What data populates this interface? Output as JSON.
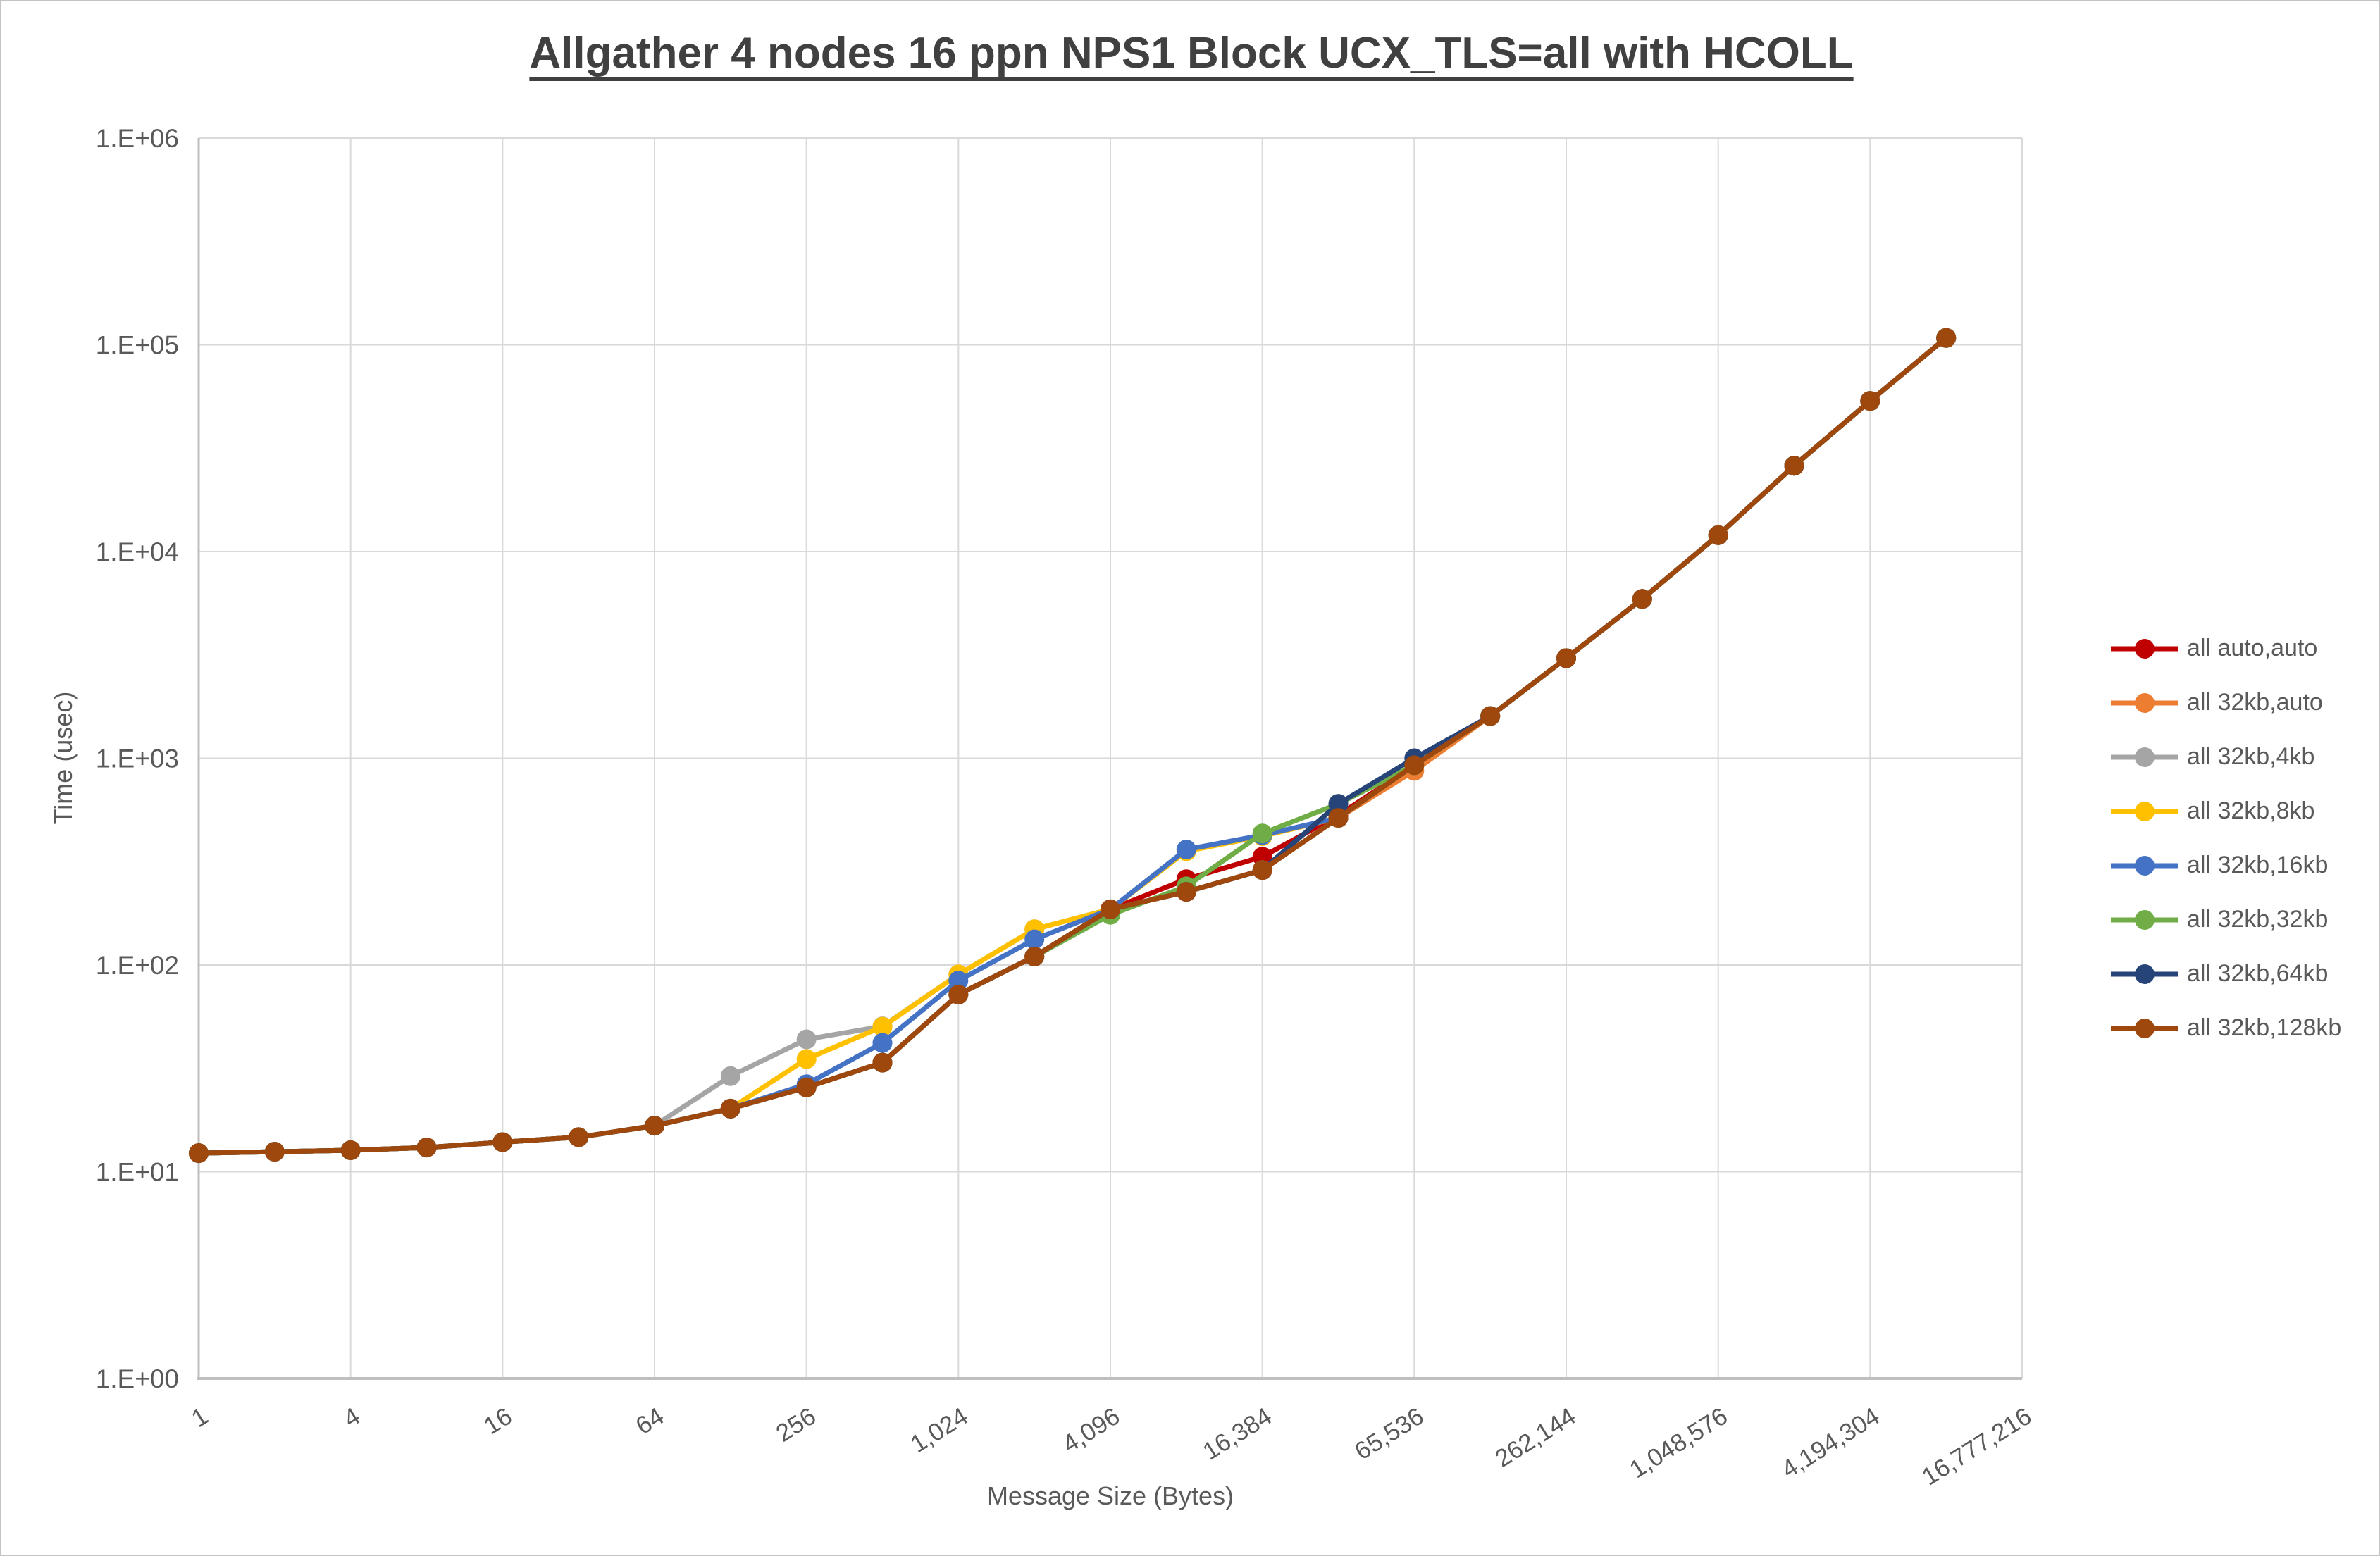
{
  "page": {
    "background": "#ffffff",
    "frame_color": "#c3c3c3"
  },
  "style": {
    "title_color": "#404040",
    "text_color": "#595959",
    "gridline_color": "#d9d9d9",
    "axis_line_color": "#bfbfbf"
  },
  "chart_data": {
    "type": "line",
    "title": "Allgather 4 nodes 16 ppn NPS1 Block UCX_TLS=all with HCOLL",
    "xlabel": "Message Size (Bytes)",
    "ylabel": "Time (usec)",
    "x_scale": "log2-categories",
    "y_scale": "log10",
    "ylim": [
      1,
      1000000
    ],
    "grid": true,
    "legend_position": "right",
    "y_tick_labels": [
      "1.E+00",
      "1.E+01",
      "1.E+02",
      "1.E+03",
      "1.E+04",
      "1.E+05",
      "1.E+06"
    ],
    "x_tick_labels": [
      "1",
      "4",
      "16",
      "64",
      "256",
      "1,024",
      "4,096",
      "16,384",
      "65,536",
      "262,144",
      "1,048,576",
      "4,194,304",
      "16,777,216"
    ],
    "x": [
      1,
      2,
      4,
      8,
      16,
      32,
      64,
      128,
      256,
      512,
      1024,
      2048,
      4096,
      8192,
      16384,
      32768,
      65536,
      131072,
      262144,
      524288,
      1048576,
      2097152,
      4194304,
      8388608
    ],
    "series": [
      {
        "name": "all auto,auto",
        "color": "#C00000",
        "values": [
          12.3,
          12.5,
          12.7,
          13.1,
          13.9,
          14.7,
          16.7,
          20.2,
          25.6,
          33.7,
          72,
          110,
          186,
          260,
          334,
          530,
          925,
          1600,
          3050,
          5900,
          12000,
          26000,
          53500,
          108000
        ]
      },
      {
        "name": "all 32kb,auto",
        "color": "#ED7D31",
        "values": [
          12.3,
          12.5,
          12.7,
          13.1,
          13.9,
          14.7,
          16.7,
          20.2,
          25.6,
          33.7,
          72,
          110,
          186,
          226,
          288,
          515,
          870,
          1600,
          3050,
          5900,
          12000,
          26000,
          53500,
          108000
        ]
      },
      {
        "name": "all 32kb,4kb",
        "color": "#A5A5A5",
        "values": [
          12.3,
          12.5,
          12.7,
          13.1,
          13.9,
          14.7,
          16.7,
          29,
          43.7,
          50.5,
          90,
          149,
          186,
          226,
          288,
          515,
          925,
          1600,
          3050,
          5900,
          12000,
          26000,
          53500,
          108000
        ]
      },
      {
        "name": "all 32kb,8kb",
        "color": "#FFC000",
        "values": [
          12.3,
          12.5,
          12.7,
          13.1,
          13.9,
          14.7,
          16.7,
          20.2,
          35.1,
          50.3,
          90,
          149,
          186,
          355,
          420,
          515,
          925,
          1600,
          3050,
          5900,
          12000,
          26000,
          53500,
          108000
        ]
      },
      {
        "name": "all 32kb,16kb",
        "color": "#4472C4",
        "values": [
          12.3,
          12.5,
          12.7,
          13.1,
          13.9,
          14.7,
          16.7,
          20.2,
          26.5,
          42,
          84,
          133,
          186,
          362,
          425,
          515,
          925,
          1600,
          3050,
          5900,
          12000,
          26000,
          53500,
          108000
        ]
      },
      {
        "name": "all 32kb,32kb",
        "color": "#70AD47",
        "values": [
          12.3,
          12.5,
          12.7,
          13.1,
          13.9,
          14.7,
          16.7,
          20.2,
          25.6,
          33.7,
          72,
          110,
          175,
          240,
          433,
          602,
          925,
          1600,
          3050,
          5900,
          12000,
          26000,
          53500,
          108000
        ]
      },
      {
        "name": "all 32kb,64kb",
        "color": "#264478",
        "values": [
          12.3,
          12.5,
          12.7,
          13.1,
          13.9,
          14.7,
          16.7,
          20.2,
          25.6,
          33.7,
          72,
          110,
          186,
          226,
          288,
          602,
          1000,
          1600,
          3050,
          5900,
          12000,
          26000,
          53500,
          108000
        ]
      },
      {
        "name": "all 32kb,128kb",
        "color": "#9E480E",
        "values": [
          12.3,
          12.5,
          12.7,
          13.1,
          13.9,
          14.7,
          16.7,
          20.2,
          25.6,
          33.7,
          72,
          110,
          186,
          226,
          288,
          515,
          925,
          1600,
          3050,
          5900,
          12000,
          26000,
          53500,
          108000
        ]
      }
    ]
  }
}
